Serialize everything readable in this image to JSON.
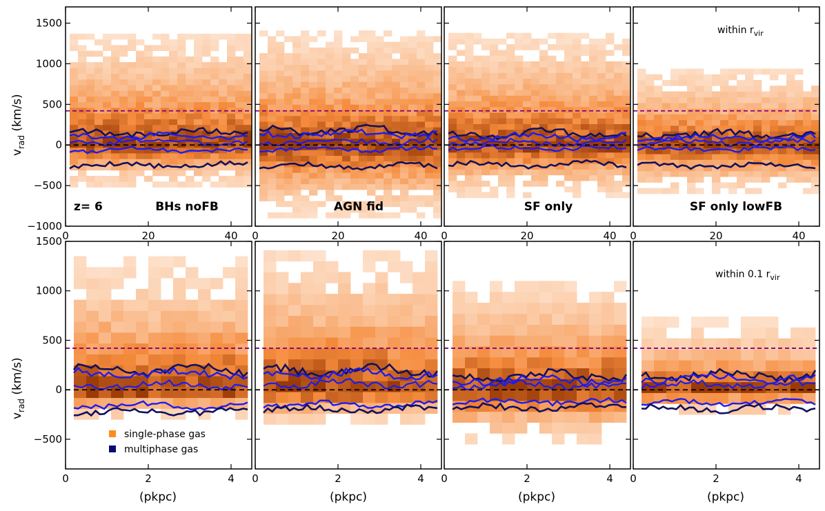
{
  "chart_data": {
    "type": "heatmap",
    "description_labels": {
      "ylabel_main": "v",
      "ylabel_sub": "rad",
      "ylabel_unit": " (km/s)",
      "xlabel": "(pkpc)",
      "redshift_label": "z= 6",
      "legend": [
        {
          "label": "single-phase gas",
          "color": "#ff8c1a"
        },
        {
          "label": "multiphase gas",
          "color": "#0b0b6e"
        }
      ]
    },
    "colors": {
      "heat_low": "#fff1e6",
      "heat_mid": "#f58b3c",
      "heat_high": "#9a3a06",
      "contour_outer": "#1c1cf0",
      "contour_inner": "#101060",
      "escape_line": "#800080",
      "zero_line": "#000000"
    },
    "models": [
      "BHs noFB",
      "AGN fid",
      "SF only",
      "SF only lowFB"
    ],
    "rows": [
      {
        "region_label_main": "within r",
        "region_label_sub": "vir",
        "xlim": [
          0,
          45
        ],
        "xticks": [
          0,
          20,
          40
        ],
        "xtick_labels": [
          "0",
          "20",
          "40"
        ],
        "ylim": [
          -1000,
          1700
        ],
        "yticks": [
          -1000,
          -500,
          0,
          500,
          1000,
          1500
        ],
        "ytick_labels": [
          "−1000",
          "−500",
          "0",
          "500",
          "1000",
          "1500"
        ],
        "x_start": 1,
        "x_end": 44,
        "bin_x": 2,
        "bin_y": 70,
        "escape_velocity": 420,
        "panels": [
          {
            "model": "BHs noFB",
            "vmax": 1350,
            "vmin": -520,
            "outer_top": 150,
            "outer_bottom": -250,
            "inner_top": 80,
            "inner_bottom": -60
          },
          {
            "model": "AGN fid",
            "vmax": 1400,
            "vmin": -900,
            "outer_top": 180,
            "outer_bottom": -260,
            "inner_top": 90,
            "inner_bottom": -50
          },
          {
            "model": "SF only",
            "vmax": 1350,
            "vmin": -650,
            "outer_top": 140,
            "outer_bottom": -240,
            "inner_top": 60,
            "inner_bottom": -40
          },
          {
            "model": "SF only lowFB",
            "vmax": 900,
            "vmin": -600,
            "outer_top": 130,
            "outer_bottom": -250,
            "inner_top": 60,
            "inner_bottom": -50
          }
        ]
      },
      {
        "region_label_main": "within 0.1 r",
        "region_label_sub": "vir",
        "xlim": [
          0,
          4.5
        ],
        "xticks": [
          0,
          2,
          4
        ],
        "xtick_labels": [
          "0",
          "2",
          "4"
        ],
        "ylim": [
          -800,
          1500
        ],
        "yticks": [
          -500,
          0,
          500,
          1000,
          1500
        ],
        "ytick_labels": [
          "−500",
          "0",
          "500",
          "1000",
          "1500"
        ],
        "x_start": 0.2,
        "x_end": 4.4,
        "bin_x": 0.3,
        "bin_y": 110,
        "escape_velocity": 420,
        "panels": [
          {
            "model": "BHs noFB",
            "vmax": 1250,
            "vmin": -300,
            "outer_top": 200,
            "outer_bottom": -220,
            "inner_top": 100,
            "inner_bottom": -160
          },
          {
            "model": "AGN fid",
            "vmax": 1350,
            "vmin": -350,
            "outer_top": 200,
            "outer_bottom": -200,
            "inner_top": 120,
            "inner_bottom": -150
          },
          {
            "model": "SF only",
            "vmax": 1100,
            "vmin": -550,
            "outer_top": 140,
            "outer_bottom": -180,
            "inner_top": 100,
            "inner_bottom": -120
          },
          {
            "model": "SF only lowFB",
            "vmax": 650,
            "vmin": -250,
            "outer_top": 150,
            "outer_bottom": -190,
            "inner_top": 100,
            "inner_bottom": -130
          }
        ]
      }
    ]
  }
}
